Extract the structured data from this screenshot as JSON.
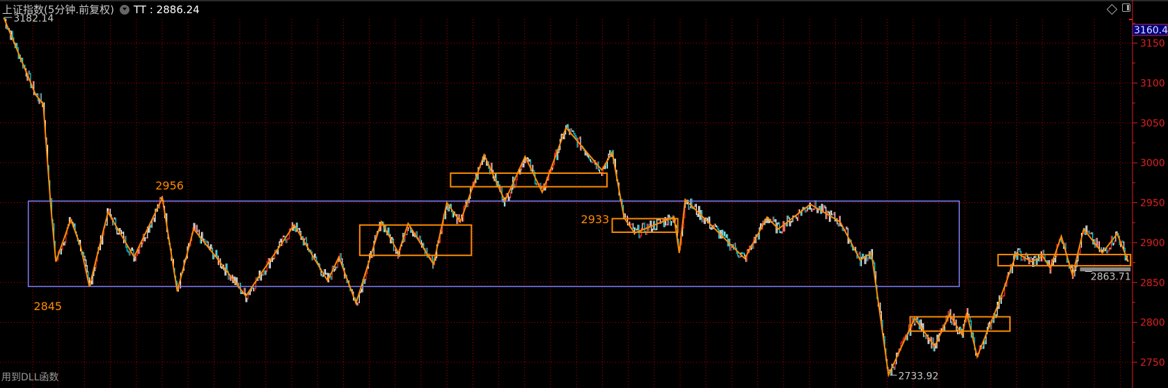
{
  "header": {
    "title": "上证指数(5分钟.前复权)",
    "indicator": "TT : 2886.24",
    "dropdown_icon": "circle-chevron-down-icon",
    "right_icons": [
      "diamond-icon",
      "panel-toggle-icon"
    ]
  },
  "footer": {
    "note": "用到DLL函数"
  },
  "colors": {
    "background": "#000000",
    "grid": "#c00000",
    "axis": "#e02020",
    "zigzag": "#ff8c00",
    "box_orange": "#ff8c00",
    "box_main": "#8080ff",
    "price_up": "#ff3030",
    "price_down": "#00e5ee",
    "price_line": "#ffffff",
    "current_price_bg": "#000080"
  },
  "chart_data": {
    "type": "line",
    "title": "上证指数(5分钟.前复权)",
    "ylim": [
      2725,
      3182
    ],
    "y_ticks": [
      2750,
      2800,
      2850,
      2900,
      2950,
      3000,
      3050,
      3100,
      3150
    ],
    "grid": true,
    "current_price_label": "3160.4",
    "annotations": [
      {
        "text": "3182.14",
        "bar": 5,
        "value": 3182.14
      },
      {
        "text": "2956",
        "bar": 218,
        "value": 2956
      },
      {
        "text": "2845",
        "bar": 120,
        "value": 2845
      },
      {
        "text": "2933",
        "bar": 822,
        "value": 2933
      },
      {
        "text": "2733.92",
        "bar": 1193,
        "value": 2733.92
      },
      {
        "text": "2863.71",
        "bar": 1455,
        "value": 2863.71
      }
    ],
    "zigzag": [
      [
        5,
        3182
      ],
      [
        48,
        3085
      ],
      [
        58,
        3074
      ],
      [
        68,
        2948
      ],
      [
        75,
        2876
      ],
      [
        95,
        2929
      ],
      [
        108,
        2896
      ],
      [
        120,
        2845
      ],
      [
        145,
        2938
      ],
      [
        180,
        2882
      ],
      [
        218,
        2956
      ],
      [
        238,
        2839
      ],
      [
        260,
        2917
      ],
      [
        290,
        2882
      ],
      [
        330,
        2833
      ],
      [
        395,
        2922
      ],
      [
        440,
        2852
      ],
      [
        455,
        2882
      ],
      [
        478,
        2824
      ],
      [
        512,
        2926
      ],
      [
        535,
        2887
      ],
      [
        548,
        2924
      ],
      [
        582,
        2873
      ],
      [
        600,
        2950
      ],
      [
        618,
        2926
      ],
      [
        650,
        3010
      ],
      [
        678,
        2952
      ],
      [
        705,
        3008
      ],
      [
        728,
        2963
      ],
      [
        760,
        3044
      ],
      [
        808,
        2991
      ],
      [
        822,
        3013
      ],
      [
        838,
        2931
      ],
      [
        852,
        2912
      ],
      [
        905,
        2932
      ],
      [
        912,
        2887
      ],
      [
        920,
        2954
      ],
      [
        1000,
        2880
      ],
      [
        1030,
        2932
      ],
      [
        1045,
        2917
      ],
      [
        1088,
        2948
      ],
      [
        1128,
        2926
      ],
      [
        1155,
        2878
      ],
      [
        1170,
        2887
      ],
      [
        1193,
        2734
      ],
      [
        1228,
        2805
      ],
      [
        1255,
        2770
      ],
      [
        1275,
        2810
      ],
      [
        1292,
        2784
      ],
      [
        1298,
        2812
      ],
      [
        1312,
        2757
      ],
      [
        1340,
        2822
      ],
      [
        1365,
        2887
      ],
      [
        1385,
        2876
      ],
      [
        1400,
        2883
      ],
      [
        1410,
        2868
      ],
      [
        1425,
        2908
      ],
      [
        1440,
        2859
      ],
      [
        1455,
        2917
      ],
      [
        1480,
        2887
      ],
      [
        1500,
        2911
      ],
      [
        1515,
        2876
      ]
    ],
    "boxes": [
      {
        "bars": [
          38,
          1288
        ],
        "range": [
          2845,
          2952
        ],
        "color": "#8080ff"
      },
      {
        "bars": [
          483,
          633
        ],
        "range": [
          2884,
          2922
        ],
        "color": "#ff8c00"
      },
      {
        "bars": [
          605,
          815
        ],
        "range": [
          2970,
          2987
        ],
        "color": "#ff8c00"
      },
      {
        "bars": [
          822,
          910
        ],
        "range": [
          2913,
          2930
        ],
        "color": "#ff8c00"
      },
      {
        "bars": [
          1222,
          1356
        ],
        "range": [
          2789,
          2807
        ],
        "color": "#ff8c00"
      },
      {
        "bars": [
          1340,
          1518
        ],
        "range": [
          2871,
          2885
        ],
        "color": "#ff8c00"
      }
    ],
    "highlight_band": {
      "bars": [
        1450,
        1518
      ],
      "range": [
        2864,
        2869
      ],
      "color": "#8a8a8a"
    }
  }
}
